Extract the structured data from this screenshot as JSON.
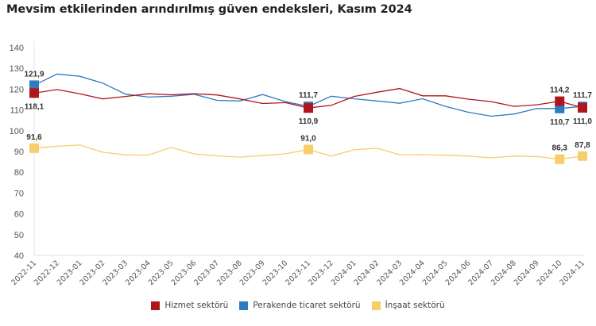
{
  "chart_data": {
    "type": "line",
    "title": "Mevsim etkilerinden arındırılmış güven endeksleri, Kasım 2024",
    "xlabel": "",
    "ylabel": "",
    "ylim": [
      40,
      140
    ],
    "yticks": [
      40,
      50,
      60,
      70,
      80,
      90,
      100,
      110,
      120,
      130,
      140
    ],
    "grid": false,
    "legend_position": "bottom",
    "x": [
      "2022-11",
      "2022-12",
      "2023-01",
      "2023-02",
      "2023-03",
      "2023-04",
      "2023-05",
      "2023-06",
      "2023-07",
      "2023-08",
      "2023-09",
      "2023-10",
      "2023-11",
      "2023-12",
      "2024-01",
      "2024-02",
      "2024-03",
      "2024-04",
      "2024-05",
      "2024-06",
      "2024-07",
      "2024-08",
      "2024-09",
      "2024-10",
      "2024-11"
    ],
    "series": [
      {
        "name": "Hizmet sektörü",
        "color": "#b0151d",
        "values": [
          118.1,
          119.8,
          117.8,
          115.3,
          116.5,
          117.8,
          117.3,
          117.8,
          117.2,
          115.3,
          113.1,
          113.5,
          110.9,
          112.2,
          116.5,
          118.5,
          120.3,
          116.8,
          116.8,
          115.2,
          114.0,
          111.7,
          112.5,
          114.2,
          111.0
        ],
        "labels": [
          {
            "index": 0,
            "text": "118,1",
            "pos": "below"
          },
          {
            "index": 12,
            "text": "110,9",
            "pos": "below"
          },
          {
            "index": 23,
            "text": "114,2",
            "pos": "above"
          },
          {
            "index": 24,
            "text": "111,0",
            "pos": "below"
          }
        ]
      },
      {
        "name": "Perakende ticaret sektörü",
        "color": "#2e7bbf",
        "values": [
          121.9,
          127.3,
          126.2,
          122.9,
          117.6,
          116.2,
          116.6,
          117.5,
          114.6,
          114.3,
          117.4,
          114.0,
          111.7,
          116.6,
          115.4,
          114.3,
          113.2,
          115.4,
          111.7,
          108.9,
          107.0,
          108.0,
          110.7,
          110.7,
          111.7
        ],
        "labels": [
          {
            "index": 0,
            "text": "121,9",
            "pos": "above"
          },
          {
            "index": 12,
            "text": "111,7",
            "pos": "above"
          },
          {
            "index": 23,
            "text": "110,7",
            "pos": "below"
          },
          {
            "index": 24,
            "text": "111,7",
            "pos": "above"
          }
        ]
      },
      {
        "name": "İnşaat sektörü",
        "color": "#f8cd6b",
        "values": [
          91.6,
          92.5,
          93.1,
          89.6,
          88.4,
          88.3,
          92.0,
          88.8,
          87.9,
          87.3,
          88.0,
          88.9,
          91.0,
          87.8,
          90.8,
          91.6,
          88.4,
          88.5,
          88.2,
          87.8,
          87.0,
          87.8,
          87.6,
          86.3,
          87.8
        ],
        "labels": [
          {
            "index": 0,
            "text": "91,6",
            "pos": "above"
          },
          {
            "index": 12,
            "text": "91,0",
            "pos": "above"
          },
          {
            "index": 23,
            "text": "86,3",
            "pos": "above"
          },
          {
            "index": 24,
            "text": "87,8",
            "pos": "above"
          }
        ]
      }
    ],
    "marker_indices": [
      0,
      12,
      23,
      24
    ]
  }
}
